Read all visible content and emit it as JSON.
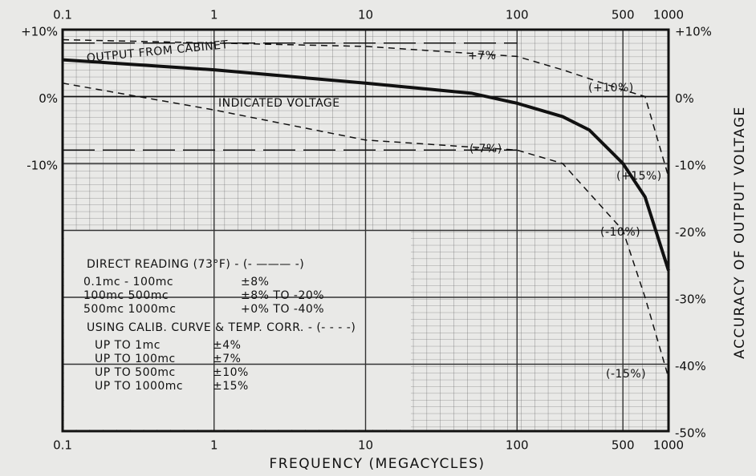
{
  "chart_data": {
    "type": "line",
    "xlabel": "FREQUENCY (MEGACYCLES)",
    "ylabel": "ACCURACY OF OUTPUT VOLTAGE",
    "xscale": "log",
    "xlim": [
      0.1,
      1000
    ],
    "ylim": [
      -50,
      10
    ],
    "xticks": [
      0.1,
      1,
      10,
      100,
      500,
      1000
    ],
    "yticks": [
      {
        "value": 10,
        "label": "+10%"
      },
      {
        "value": 0,
        "label": "0%"
      },
      {
        "value": -10,
        "label": "-10%"
      },
      {
        "value": -20,
        "label": "-20%"
      },
      {
        "value": -30,
        "label": "-30%"
      },
      {
        "value": -40,
        "label": "-40%"
      },
      {
        "value": -50,
        "label": "-50%"
      }
    ],
    "grid": true,
    "series": [
      {
        "name": "OUTPUT FROM CABINET",
        "color": "#111111",
        "style": "solid",
        "x": [
          0.1,
          1,
          10,
          50,
          100,
          200,
          300,
          500,
          700,
          1000
        ],
        "values": [
          5.5,
          4,
          2,
          0.5,
          -1,
          -3,
          -5,
          -10,
          -15,
          -26
        ]
      },
      {
        "name": "INDICATED VOLTAGE",
        "color": "#111111",
        "style": "thin",
        "x": [
          0.1,
          1000
        ],
        "values": [
          0,
          0
        ]
      },
      {
        "color": "#111111",
        "style": "longdash",
        "x": [
          0.1,
          100
        ],
        "values": [
          8,
          8
        ]
      },
      {
        "color": "#111111",
        "style": "longdash",
        "x": [
          0.1,
          100
        ],
        "values": [
          -8,
          -8
        ]
      },
      {
        "color": "#111111",
        "style": "dashed",
        "x": [
          0.1,
          10,
          100,
          200,
          500,
          700,
          1000
        ],
        "values": [
          8.5,
          7.5,
          6,
          4,
          1,
          0,
          -12
        ]
      },
      {
        "color": "#111111",
        "style": "dashed",
        "x": [
          0.1,
          1,
          10,
          100,
          200,
          500,
          700,
          1000
        ],
        "values": [
          2,
          -2,
          -6.5,
          -8,
          -10,
          -20,
          -30,
          -42
        ]
      }
    ],
    "annotations": [
      "+7%",
      "(+10%)",
      "(-7%)",
      "(+15%)",
      "(-10%)",
      "(-15%)"
    ],
    "legend_box": [
      [
        "DIRECT READING (73°F) - (- ——— -)"
      ],
      [
        "0.1mc - 100mc",
        "±8%"
      ],
      [
        "100mc  500mc",
        "±8% TO -20%"
      ],
      [
        "500mc  1000mc",
        "+0% TO -40%"
      ],
      [
        "USING CALIB. CURVE & TEMP. CORR. - (- - - -)"
      ],
      [
        "UP TO 1mc",
        "±4%"
      ],
      [
        "UP TO 100mc",
        "±7%"
      ],
      [
        "UP TO 500mc",
        "±10%"
      ],
      [
        "UP TO 1000mc",
        "±15%"
      ]
    ]
  }
}
